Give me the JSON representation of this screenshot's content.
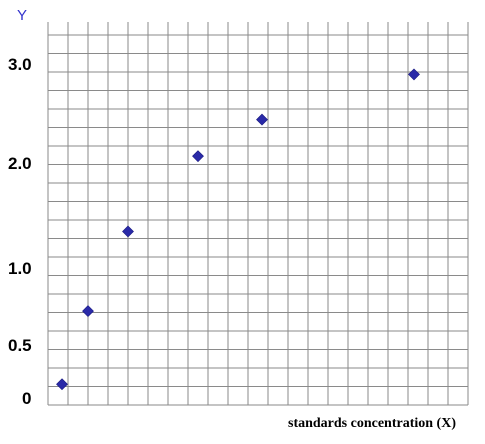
{
  "chart_data": {
    "type": "scatter",
    "title": "",
    "xlabel": "standards concentration (X)",
    "ylabel": "Y",
    "grid": true,
    "legend": "none",
    "y_ticks": [
      {
        "label": "3.0",
        "value": 3.0
      },
      {
        "label": "2.0",
        "value": 2.0
      },
      {
        "label": "1.0",
        "value": 1.0
      },
      {
        "label": "0.5",
        "value": 0.5
      },
      {
        "label": "0",
        "value": 0
      }
    ],
    "ylim": [
      0,
      3.3
    ],
    "xlim": [
      0,
      21
    ],
    "x": [
      0.7,
      2.0,
      4.0,
      7.5,
      10.7,
      18.3
    ],
    "y": [
      0.1,
      0.78,
      1.52,
      2.22,
      2.56,
      2.98
    ],
    "marker": "diamond",
    "marker_color": "#2a2aa8"
  }
}
